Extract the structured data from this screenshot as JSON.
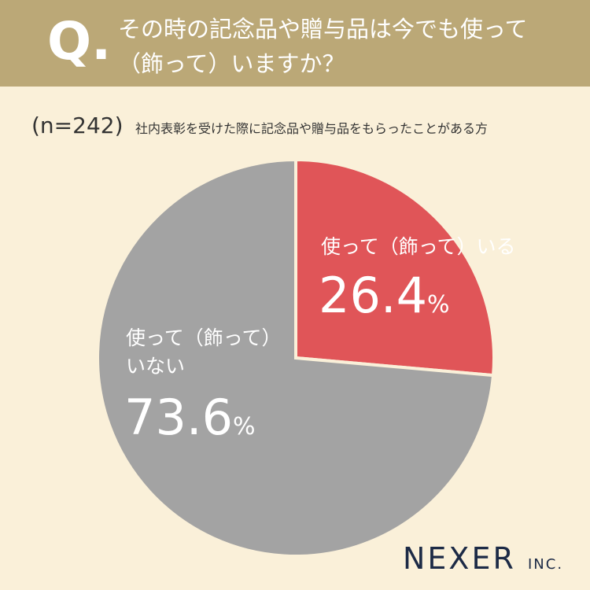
{
  "header": {
    "mark": "Q.",
    "title_lines": [
      "その時の記念品や贈与品は今でも使って",
      "（飾って）いますか？"
    ]
  },
  "chart_data": {
    "type": "pie",
    "sample": "(n=242)",
    "subtitle": "社内表彰を受けた際に記念品や贈与品をもらったことがある方",
    "categories": [
      "使って（飾って）いる",
      "使って（飾って）いない"
    ],
    "values": [
      26.4,
      73.6
    ],
    "value_labels": [
      "26.4%",
      "73.6%"
    ],
    "colors": [
      "#e05558",
      "#a3a3a3"
    ],
    "start_angle": 0,
    "direction": "clockwise"
  },
  "brand": {
    "name": "NEXER",
    "suffix": "INC."
  }
}
